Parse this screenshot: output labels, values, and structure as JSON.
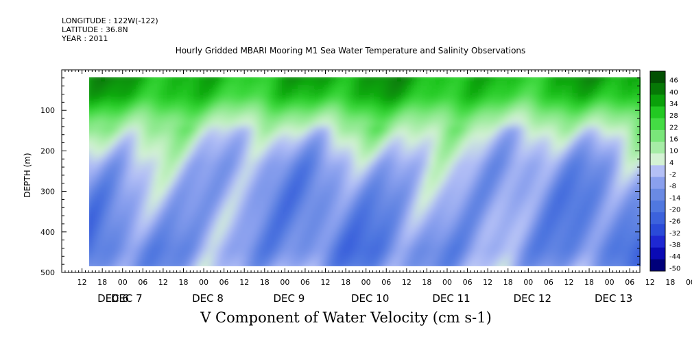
{
  "header": {
    "longitude": "LONGITUDE : 122W(-122)",
    "latitude": "LATITUDE : 36.8N",
    "year": "YEAR : 2011"
  },
  "chart_data": {
    "type": "heatmap",
    "title": "Hourly Gridded MBARI Mooring M1 Sea Water Temperature and Salinity Observations",
    "xlabel": "V Component of Water Velocity (cm s-1)",
    "ylabel": "DEPTH (m)",
    "x_axis": {
      "start": "2011-12-06 06:00",
      "end": "2011-12-13 09:00",
      "hour_labels": [
        "12",
        "18",
        "00",
        "06",
        "12",
        "18",
        "00",
        "06",
        "12",
        "18",
        "00",
        "06",
        "12",
        "18",
        "00",
        "06",
        "12",
        "18",
        "00",
        "06",
        "12",
        "18",
        "00",
        "06",
        "12",
        "18",
        "00",
        "06",
        "12",
        "18",
        "00",
        "06"
      ],
      "day_labels": [
        "DEC  6",
        "DEC  7",
        "DEC  8",
        "DEC  9",
        "DEC 10",
        "DEC 11",
        "DEC 12",
        "DEC 13"
      ]
    },
    "y_axis": {
      "range": [
        500,
        0
      ],
      "ticks": [
        100,
        200,
        300,
        400,
        500
      ],
      "data_depth_range": [
        15,
        485
      ]
    },
    "colorbar": {
      "labels": [
        "46",
        "40",
        "34",
        "28",
        "22",
        "16",
        "10",
        "4",
        "-2",
        "-8",
        "-14",
        "-20",
        "-26",
        "-32",
        "-38",
        "-44",
        "-50"
      ]
    },
    "depth_profile": [
      {
        "depth": 15,
        "v": 32
      },
      {
        "depth": 60,
        "v": 28
      },
      {
        "depth": 110,
        "v": 14
      },
      {
        "depth": 170,
        "v": 2
      },
      {
        "depth": 230,
        "v": -6
      },
      {
        "depth": 300,
        "v": -10
      },
      {
        "depth": 380,
        "v": -12
      },
      {
        "depth": 440,
        "v": -14
      },
      {
        "depth": 485,
        "v": -10
      }
    ],
    "grid": false,
    "legend": "colorbar-right"
  }
}
